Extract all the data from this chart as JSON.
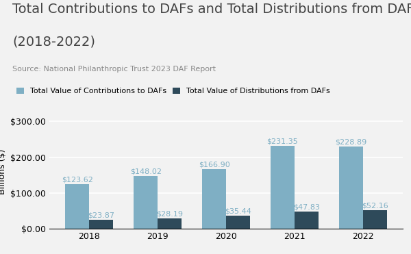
{
  "title_line1": "Total Contributions to DAFs and Total Distributions from DAFs",
  "title_line2": "(2018-2022)",
  "source": "Source: National Philanthropic Trust 2023 DAF Report",
  "years": [
    "2018",
    "2019",
    "2020",
    "2021",
    "2022"
  ],
  "contributions": [
    123.62,
    148.02,
    166.9,
    231.35,
    228.89
  ],
  "distributions": [
    23.87,
    28.19,
    35.44,
    47.83,
    52.16
  ],
  "contrib_color": "#7fafc4",
  "distrib_color": "#2e4a5a",
  "ylabel": "Billions ($)",
  "ylim": [
    0,
    320
  ],
  "yticks": [
    0,
    100,
    200,
    300
  ],
  "bar_width": 0.35,
  "legend_labels": [
    "Total Value of Contributions to DAFs",
    "Total Value of Distributions from DAFs"
  ],
  "background_color": "#f2f2f2",
  "grid_color": "#ffffff",
  "title_fontsize": 14,
  "source_fontsize": 8,
  "annot_fontsize": 8,
  "axis_fontsize": 9,
  "legend_fontsize": 8
}
